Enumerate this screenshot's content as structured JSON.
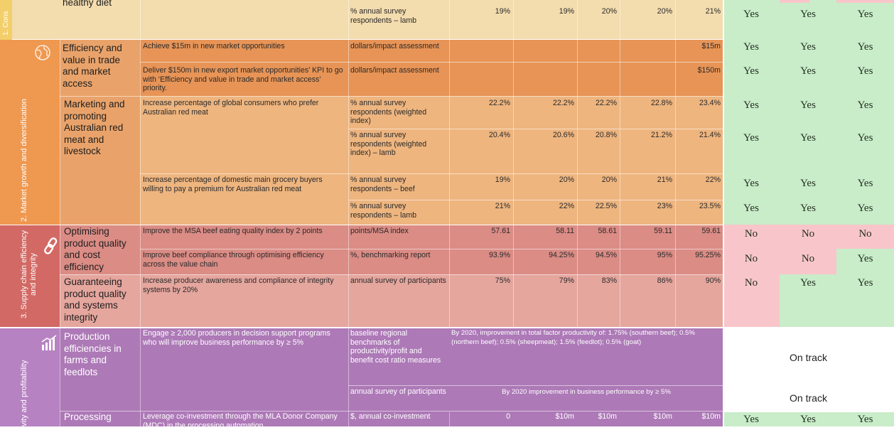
{
  "colors": {
    "consumer": "#f3dcae",
    "consumer_side": "#f3cf6b",
    "growth_light": "#eeb57f",
    "growth_dark": "#e79456",
    "growth_side": "#ef9850",
    "supply": "#db8c85",
    "supply_light": "#e5a69e",
    "supply_side": "#d26964",
    "prod": "#ad79b7",
    "prod_side": "#b782c2",
    "yes": "#c9ecc9",
    "no": "#f8c6ca"
  },
  "pillars": {
    "consumer": "1. Cons",
    "growth": "2. Market growth and diversification",
    "supply": "3. Supply chain efficiency and integrity",
    "prod": "vity and profitability"
  },
  "icons": {
    "growth": "globe-icon",
    "supply": "chain-link-icon",
    "prod": "bar-chart-icon"
  },
  "rows": {
    "consumer_top": {
      "area": "healthy diet",
      "measure": "% annual survey respondents – lamb",
      "v": [
        "19%",
        "19%",
        "20%",
        "20%",
        "21%"
      ],
      "yn": [
        "Yes",
        "Yes",
        "Yes"
      ]
    },
    "efficiency": {
      "area": "Efficiency and value in trade and market access",
      "kpi1": "Achieve $15m in new market opportunities",
      "measure1": "dollars/impact assessment",
      "v1": "$15m",
      "yn1": [
        "Yes",
        "Yes",
        "Yes"
      ],
      "kpi2": "Deliver $150m in new export market opportunities’ KPI to go with ‘Efficiency and value in trade and market access’ priority.",
      "measure2": "dollars/impact assessment",
      "v2": "$150m",
      "yn2": [
        "Yes",
        "Yes",
        "Yes"
      ]
    },
    "marketing": {
      "area": "Marketing and promoting Australian red meat and livestock",
      "kpi1": "Increase percentage of global consumers who prefer Australian red meat",
      "measure1": "% annual survey respondents (weighted index)",
      "v1": [
        "22.2%",
        "22.2%",
        "22.2%",
        "22.8%",
        "23.4%"
      ],
      "yn1": [
        "Yes",
        "Yes",
        "Yes"
      ],
      "measure2": "% annual survey respondents (weighted index) – lamb",
      "v2": [
        "20.4%",
        "20.6%",
        "20.8%",
        "21.2%",
        "21.4%"
      ],
      "yn2": [
        "Yes",
        "Yes",
        "Yes"
      ],
      "kpi3": "Increase percentage of domestic main grocery buyers willing to pay a premium for Australian red meat",
      "measure3": "% annual survey respondents – beef",
      "v3": [
        "19%",
        "20%",
        "20%",
        "21%",
        "22%"
      ],
      "yn3": [
        "Yes",
        "Yes",
        "Yes"
      ],
      "measure4": "% annual survey respondents – lamb",
      "v4": [
        "21%",
        "22%",
        "22.5%",
        "23%",
        "23.5%"
      ],
      "yn4": [
        "Yes",
        "Yes",
        "Yes"
      ]
    },
    "optimising": {
      "area": "Optimising product quality and cost efficiency",
      "kpi1": "Improve the MSA beef eating quality index by 2 points",
      "measure1": "points/MSA index",
      "v1": [
        "57.61",
        "58.11",
        "58.61",
        "59.11",
        "59.61"
      ],
      "yn1": [
        "No",
        "No",
        "No"
      ],
      "kpi2": "Improve beef compliance through optimising efficiency across the value chain",
      "measure2": "%, benchmarking report",
      "v2": [
        "93.9%",
        "94.25%",
        "94.5%",
        "95%",
        "95.25%"
      ],
      "yn2": [
        "No",
        "No",
        "Yes"
      ]
    },
    "guaranteeing": {
      "area": "Guaranteeing product quality and systems integrity",
      "kpi": "Increase producer awareness and compliance of integrity systems by 20%",
      "measure": "annual survey of participants",
      "v": [
        "75%",
        "79%",
        "83%",
        "86%",
        "90%"
      ],
      "yn": [
        "No",
        "Yes",
        "Yes"
      ]
    },
    "production": {
      "area": "Production efficiencies in farms and feedlots",
      "kpi": "Engage ≥ 2,000 producers in decision support programs who will improve business performance by ≥ 5%",
      "measure1": "baseline regional benchmarks of productivity/profit and benefit cost ratio measures",
      "target1": "By 2020, improvement in total factor productivity of: 1.75% (southern beef); 0.5% (northern beef); 0.5% (sheepmeat); 1.5% (feedlot); 0.5% (goat)",
      "status1": "On track",
      "measure2": "annual survey of participants",
      "target2": "By 2020 improvement in business performance by ≥ 5%",
      "status2": "On track"
    },
    "processing": {
      "area": "Processing",
      "kpi": "Leverage co-investment through the MLA Donor Company (MDC) in the processing automation",
      "measure": "$, annual co-investment",
      "v": [
        "0",
        "$10m",
        "$10m",
        "$10m",
        "$10m"
      ],
      "yn": [
        "Yes",
        "Yes",
        "Yes"
      ]
    }
  }
}
